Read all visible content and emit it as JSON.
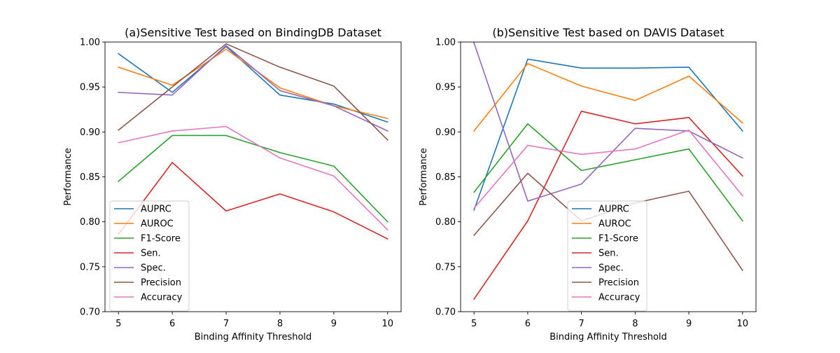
{
  "chart_data": [
    {
      "type": "line",
      "title": "(a)Sensitive Test based on BindingDB Dataset",
      "xlabel": "Binding Affinity Threshold",
      "ylabel": "Performance",
      "x": [
        5,
        6,
        7,
        8,
        9,
        10
      ],
      "xticks": [
        "5",
        "6",
        "7",
        "8",
        "9",
        "10"
      ],
      "xlim": [
        4.75,
        10.25
      ],
      "ylim": [
        0.7,
        1.0
      ],
      "yticks": [
        "0.70",
        "0.75",
        "0.80",
        "0.85",
        "0.90",
        "0.95",
        "1.00"
      ],
      "grid": false,
      "legend_position": "lower-left",
      "series": [
        {
          "name": "AUPRC",
          "color": "#1f77b4",
          "values": [
            0.987,
            0.944,
            0.995,
            0.941,
            0.931,
            0.911
          ]
        },
        {
          "name": "AUROC",
          "color": "#ff7f0e",
          "values": [
            0.972,
            0.952,
            0.992,
            0.949,
            0.929,
            0.915
          ]
        },
        {
          "name": "F1-Score",
          "color": "#2ca02c",
          "values": [
            0.845,
            0.896,
            0.896,
            0.877,
            0.862,
            0.8
          ]
        },
        {
          "name": "Sen.",
          "color": "#d62728",
          "values": [
            0.786,
            0.866,
            0.812,
            0.831,
            0.811,
            0.781
          ]
        },
        {
          "name": "Spec.",
          "color": "#9467bd",
          "values": [
            0.944,
            0.941,
            0.996,
            0.946,
            0.929,
            0.901
          ]
        },
        {
          "name": "Precision",
          "color": "#8c564b",
          "values": [
            0.902,
            0.95,
            0.998,
            0.972,
            0.951,
            0.891
          ]
        },
        {
          "name": "Accuracy",
          "color": "#e377c2",
          "values": [
            0.888,
            0.901,
            0.906,
            0.871,
            0.851,
            0.791
          ]
        }
      ]
    },
    {
      "type": "line",
      "title": "(b)Sensitive Test based on DAVIS Dataset",
      "xlabel": "Binding Affinity Threshold",
      "ylabel": "Performance",
      "x": [
        5,
        6,
        7,
        8,
        9,
        10
      ],
      "xticks": [
        "5",
        "6",
        "7",
        "8",
        "9",
        "10"
      ],
      "xlim": [
        4.75,
        10.25
      ],
      "ylim": [
        0.7,
        1.0
      ],
      "yticks": [
        "0.70",
        "0.75",
        "0.80",
        "0.85",
        "0.90",
        "0.95",
        "1.00"
      ],
      "grid": false,
      "legend_position": "lower-center",
      "series": [
        {
          "name": "AUPRC",
          "color": "#1f77b4",
          "values": [
            0.813,
            0.981,
            0.971,
            0.971,
            0.972,
            0.901
          ]
        },
        {
          "name": "AUROC",
          "color": "#ff7f0e",
          "values": [
            0.901,
            0.976,
            0.951,
            0.935,
            0.962,
            0.91
          ]
        },
        {
          "name": "F1-Score",
          "color": "#2ca02c",
          "values": [
            0.833,
            0.909,
            0.857,
            0.869,
            0.881,
            0.801
          ]
        },
        {
          "name": "Sen.",
          "color": "#d62728",
          "values": [
            0.714,
            0.801,
            0.923,
            0.909,
            0.916,
            0.851
          ]
        },
        {
          "name": "Spec.",
          "color": "#9467bd",
          "values": [
            0.999,
            0.823,
            0.842,
            0.904,
            0.901,
            0.871
          ]
        },
        {
          "name": "Precision",
          "color": "#8c564b",
          "values": [
            0.785,
            0.854,
            0.801,
            0.821,
            0.834,
            0.746
          ]
        },
        {
          "name": "Accuracy",
          "color": "#e377c2",
          "values": [
            0.815,
            0.885,
            0.875,
            0.881,
            0.902,
            0.829
          ]
        }
      ]
    }
  ]
}
